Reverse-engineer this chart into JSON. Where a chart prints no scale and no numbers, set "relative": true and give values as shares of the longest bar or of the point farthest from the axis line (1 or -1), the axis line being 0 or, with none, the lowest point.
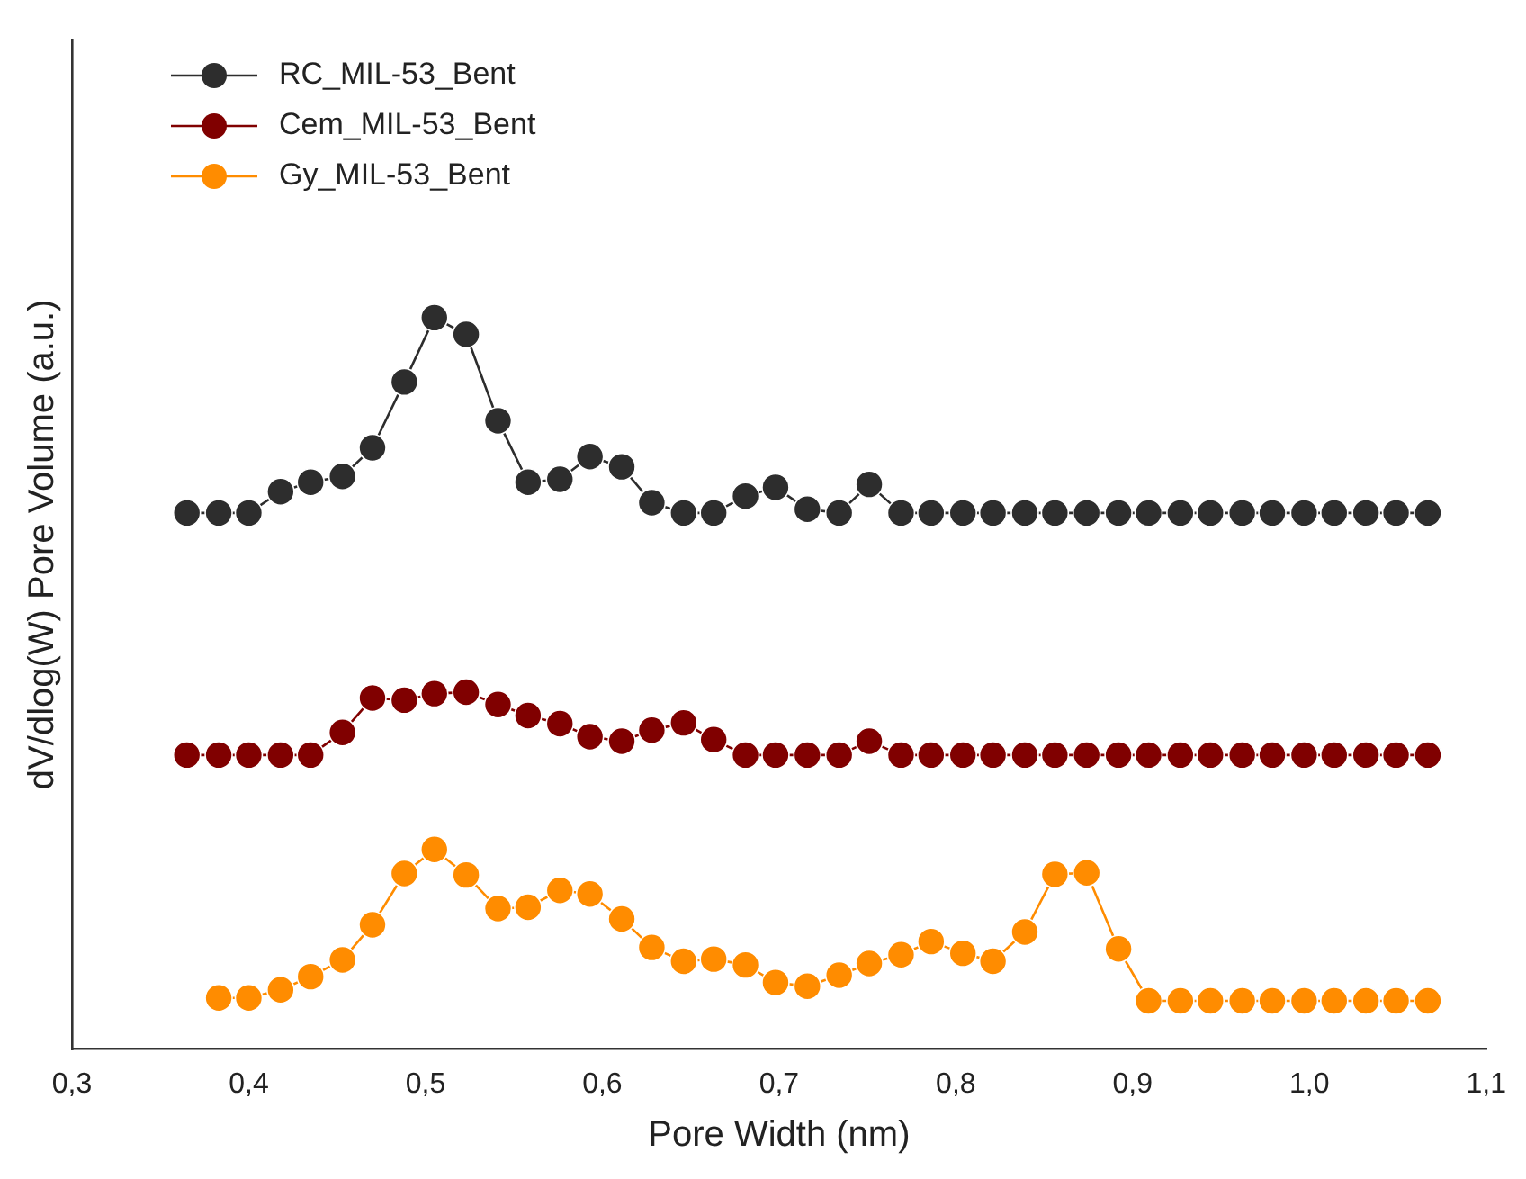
{
  "chart_data": {
    "type": "line",
    "xlabel": "Pore Width (nm)",
    "ylabel": "dV/dlog(W) Pore Volume (a.u.)",
    "relative": true,
    "x": [
      0.365,
      0.383,
      0.4,
      0.418,
      0.435,
      0.453,
      0.47,
      0.488,
      0.505,
      0.523,
      0.541,
      0.558,
      0.576,
      0.593,
      0.611,
      0.628,
      0.646,
      0.663,
      0.681,
      0.698,
      0.716,
      0.734,
      0.751,
      0.769,
      0.786,
      0.804,
      0.821,
      0.839,
      0.856,
      0.874,
      0.892,
      0.909,
      0.927,
      0.944,
      0.962,
      0.979,
      0.997,
      1.014,
      1.032,
      1.049,
      1.067
    ],
    "xlim": [
      0.3,
      1.1
    ],
    "xticks": [
      {
        "value": 0.3,
        "label": "0,3"
      },
      {
        "value": 0.4,
        "label": "0,4"
      },
      {
        "value": 0.5,
        "label": "0,5"
      },
      {
        "value": 0.6,
        "label": "0,6"
      },
      {
        "value": 0.7,
        "label": "0,7"
      },
      {
        "value": 0.8,
        "label": "0,8"
      },
      {
        "value": 0.9,
        "label": "0,9"
      },
      {
        "value": 1.0,
        "label": "1,0"
      },
      {
        "value": 1.1,
        "label": "1,1"
      }
    ],
    "grid": false,
    "legend": "top left",
    "marker": "circle",
    "line_style": "solid",
    "series": [
      {
        "name": "RC_MIL-53_Bent",
        "color": "#2d2d2d",
        "values": [
          0.733,
          0.733,
          0.733,
          0.762,
          0.775,
          0.783,
          0.822,
          0.912,
          1,
          0.977,
          0.859,
          0.775,
          0.779,
          0.81,
          0.796,
          0.747,
          0.733,
          0.733,
          0.756,
          0.768,
          0.738,
          0.733,
          0.772,
          0.733,
          0.733,
          0.733,
          0.733,
          0.733,
          0.733,
          0.733,
          0.733,
          0.733,
          0.733,
          0.733,
          0.733,
          0.733,
          0.733,
          0.733,
          0.733,
          0.733,
          0.733
        ]
      },
      {
        "name": "Cem_MIL-53_Bent",
        "color": "#800000",
        "values": [
          0.402,
          0.402,
          0.402,
          0.402,
          0.402,
          0.433,
          0.48,
          0.477,
          0.486,
          0.488,
          0.471,
          0.456,
          0.445,
          0.427,
          0.421,
          0.436,
          0.446,
          0.423,
          0.402,
          0.402,
          0.402,
          0.402,
          0.421,
          0.402,
          0.402,
          0.402,
          0.402,
          0.402,
          0.402,
          0.402,
          0.402,
          0.402,
          0.402,
          0.402,
          0.402,
          0.402,
          0.402,
          0.402,
          0.402,
          0.402,
          0.402
        ]
      },
      {
        "name": "Gy_MIL-53_Bent",
        "color": "#ff8c00",
        "values": [
          null,
          0.07,
          0.07,
          0.081,
          0.099,
          0.122,
          0.17,
          0.24,
          0.273,
          0.238,
          0.192,
          0.194,
          0.217,
          0.212,
          0.178,
          0.139,
          0.12,
          0.123,
          0.115,
          0.091,
          0.086,
          0.101,
          0.117,
          0.129,
          0.147,
          0.131,
          0.12,
          0.16,
          0.239,
          0.241,
          0.137,
          0.066,
          0.066,
          0.066,
          0.066,
          0.066,
          0.066,
          0.066,
          0.066,
          0.066,
          0.066
        ]
      }
    ]
  }
}
